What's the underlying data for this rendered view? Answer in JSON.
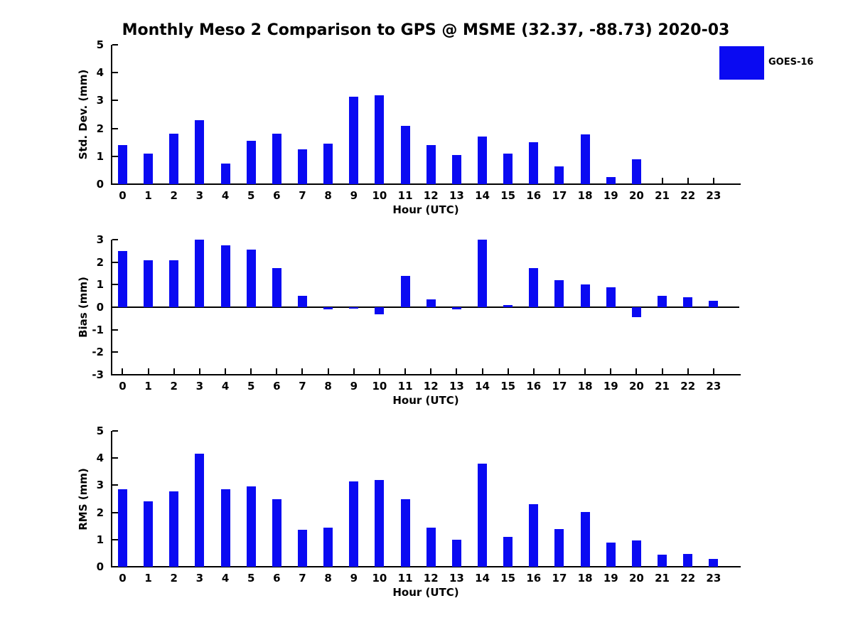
{
  "title": "Monthly Meso 2 Comparison to GPS @ MSME (32.37, -88.73) 2020-03",
  "legend": [
    {
      "label": "GOES-16",
      "color": "#0a0af2",
      "position": "top-right"
    }
  ],
  "colors": {
    "bar": "#0a0af2",
    "axis": "#000000",
    "background": "#ffffff"
  },
  "chart_data": [
    {
      "type": "bar",
      "id": "std-dev",
      "series_name": "GOES-16",
      "ylabel": "Std. Dev. (mm)",
      "xlabel": "Hour (UTC)",
      "ylim": [
        0,
        5
      ],
      "yticks": [
        0,
        1,
        2,
        3,
        4,
        5
      ],
      "grid": false,
      "categories": [
        "0",
        "1",
        "2",
        "3",
        "4",
        "5",
        "6",
        "7",
        "8",
        "9",
        "10",
        "11",
        "12",
        "13",
        "14",
        "15",
        "16",
        "17",
        "18",
        "19",
        "20",
        "21",
        "22",
        "23"
      ],
      "values": [
        1.4,
        1.1,
        1.8,
        2.3,
        0.75,
        1.55,
        1.8,
        1.25,
        1.45,
        3.15,
        3.2,
        2.1,
        1.4,
        1.05,
        1.72,
        1.1,
        1.5,
        0.65,
        1.78,
        0.25,
        0.9,
        0,
        0,
        0
      ]
    },
    {
      "type": "bar",
      "id": "bias",
      "series_name": "GOES-16",
      "ylabel": "Bias (mm)",
      "xlabel": "Hour (UTC)",
      "ylim": [
        -3,
        3
      ],
      "yticks": [
        -3,
        -2,
        -1,
        0,
        1,
        2,
        3
      ],
      "grid": false,
      "categories": [
        "0",
        "1",
        "2",
        "3",
        "4",
        "5",
        "6",
        "7",
        "8",
        "9",
        "10",
        "11",
        "12",
        "13",
        "14",
        "15",
        "16",
        "17",
        "18",
        "19",
        "20",
        "21",
        "22",
        "23"
      ],
      "values": [
        2.5,
        2.1,
        2.1,
        3.0,
        2.75,
        2.55,
        1.75,
        0.5,
        -0.1,
        -0.05,
        -0.3,
        1.4,
        0.35,
        -0.1,
        3.0,
        0.1,
        1.75,
        1.2,
        1.0,
        0.9,
        -0.45,
        0.5,
        0.45,
        0.3
      ]
    },
    {
      "type": "bar",
      "id": "rms",
      "series_name": "GOES-16",
      "ylabel": "RMS (mm)",
      "xlabel": "Hour (UTC)",
      "ylim": [
        0,
        5
      ],
      "yticks": [
        0,
        1,
        2,
        3,
        4,
        5
      ],
      "grid": false,
      "categories": [
        "0",
        "1",
        "2",
        "3",
        "4",
        "5",
        "6",
        "7",
        "8",
        "9",
        "10",
        "11",
        "12",
        "13",
        "14",
        "15",
        "16",
        "17",
        "18",
        "19",
        "20",
        "21",
        "22",
        "23"
      ],
      "values": [
        2.85,
        2.4,
        2.78,
        4.15,
        2.85,
        2.95,
        2.5,
        1.35,
        1.45,
        3.15,
        3.2,
        2.5,
        1.45,
        1.0,
        3.8,
        1.1,
        2.3,
        1.38,
        2.02,
        0.9,
        0.97,
        0.45,
        0.46,
        0.28
      ]
    }
  ]
}
